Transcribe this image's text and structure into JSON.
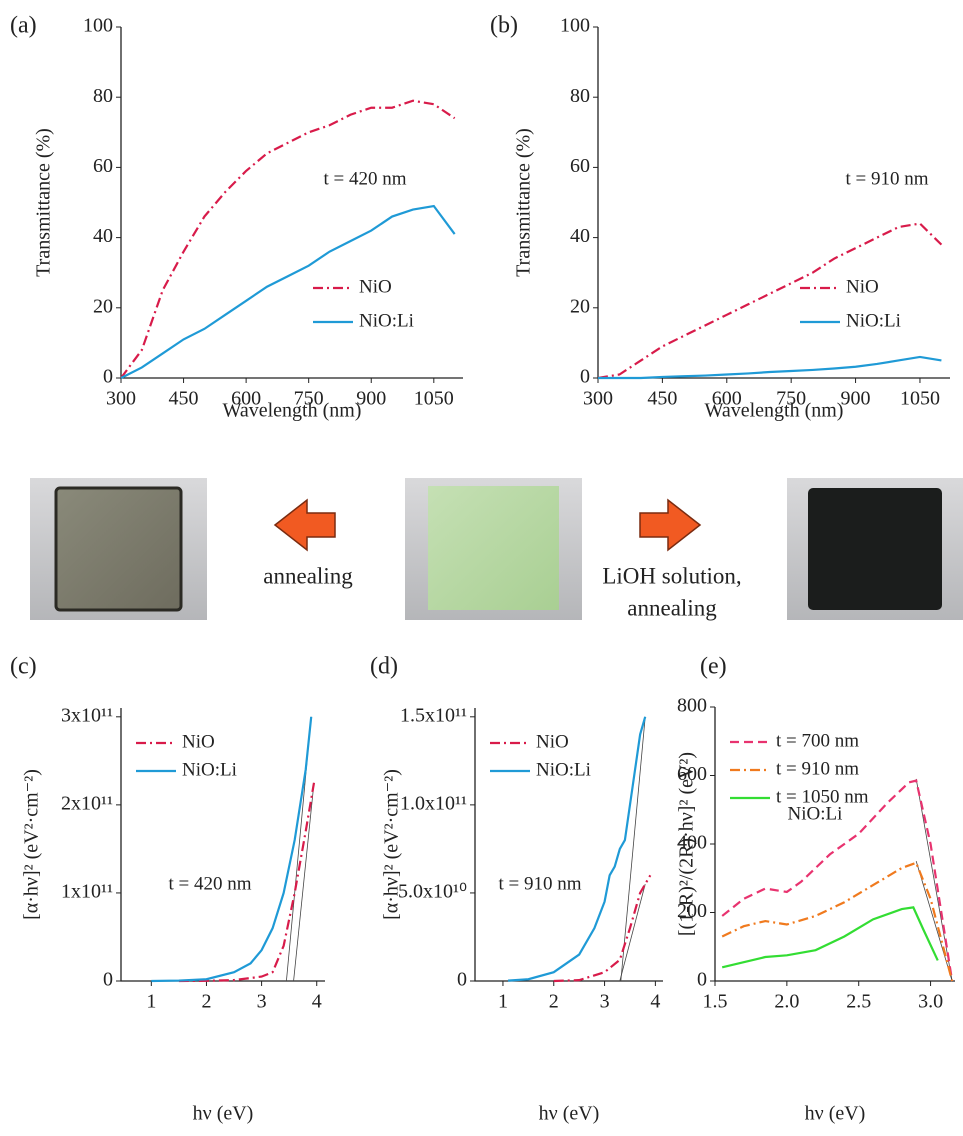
{
  "chart_data": [
    {
      "type": "line",
      "panel_label": "(a)",
      "xlabel": "Wavelength (nm)",
      "ylabel": "Transmittance (%)",
      "annotation": "t = 420 nm",
      "legend": "lower right",
      "xlim": [
        300,
        1120
      ],
      "ylim": [
        0,
        100
      ],
      "xticks": [
        300,
        450,
        600,
        750,
        900,
        1050
      ],
      "yticks": [
        0,
        20,
        40,
        60,
        80,
        100
      ],
      "series": [
        {
          "name": "NiO",
          "color": "#d81b4a",
          "dash": "dash-dot",
          "x": [
            300,
            350,
            400,
            450,
            500,
            550,
            600,
            650,
            700,
            750,
            800,
            850,
            900,
            950,
            1000,
            1050,
            1100
          ],
          "values": [
            0,
            8,
            25,
            36,
            46,
            53,
            59,
            64,
            67,
            70,
            72,
            75,
            77,
            77,
            79,
            78,
            74
          ]
        },
        {
          "name": "NiO:Li",
          "color": "#1f9ad6",
          "dash": "solid",
          "x": [
            300,
            350,
            400,
            450,
            500,
            550,
            600,
            650,
            700,
            750,
            800,
            850,
            900,
            950,
            1000,
            1050,
            1100
          ],
          "values": [
            0,
            3,
            7,
            11,
            14,
            18,
            22,
            26,
            29,
            32,
            36,
            39,
            42,
            46,
            48,
            49,
            41
          ]
        }
      ]
    },
    {
      "type": "line",
      "panel_label": "(b)",
      "xlabel": "Wavelength (nm)",
      "ylabel": "Transmittance (%)",
      "annotation": "t = 910 nm",
      "legend": "lower right",
      "xlim": [
        300,
        1120
      ],
      "ylim": [
        0,
        100
      ],
      "xticks": [
        300,
        450,
        600,
        750,
        900,
        1050
      ],
      "yticks": [
        0,
        20,
        40,
        60,
        80,
        100
      ],
      "series": [
        {
          "name": "NiO",
          "color": "#d81b4a",
          "dash": "dash-dot",
          "x": [
            300,
            350,
            400,
            450,
            500,
            550,
            600,
            650,
            700,
            750,
            800,
            850,
            900,
            950,
            1000,
            1050,
            1100
          ],
          "values": [
            0,
            1,
            5,
            9,
            12,
            15,
            18,
            21,
            24,
            27,
            30,
            34,
            37,
            40,
            43,
            44,
            38
          ]
        },
        {
          "name": "NiO:Li",
          "color": "#1f9ad6",
          "dash": "solid",
          "x": [
            300,
            350,
            400,
            450,
            500,
            550,
            600,
            650,
            700,
            750,
            800,
            850,
            900,
            950,
            1000,
            1050,
            1100
          ],
          "values": [
            0,
            0,
            0,
            0.3,
            0.5,
            0.7,
            1,
            1.3,
            1.7,
            2,
            2.3,
            2.7,
            3.2,
            4,
            5,
            6,
            5
          ]
        }
      ]
    },
    {
      "type": "line",
      "panel_label": "(c)",
      "xlabel": "hν (eV)",
      "ylabel": "[α·hν]² (eV²·cm⁻²)",
      "annotation": "t = 420 nm",
      "legend": "upper left",
      "xlim": [
        0.45,
        4.15
      ],
      "ylim": [
        0,
        310000000000
      ],
      "xticks": [
        1,
        2,
        3,
        4
      ],
      "yticks": [
        0,
        {
          "value": 100000000000,
          "label": "1x10¹¹"
        },
        {
          "value": 200000000000,
          "label": "2x10¹¹"
        },
        {
          "value": 300000000000,
          "label": "3x10¹¹"
        }
      ],
      "series": [
        {
          "name": "NiO",
          "color": "#d81b4a",
          "dash": "dash-dot",
          "x": [
            1.5,
            2.0,
            2.5,
            3.0,
            3.2,
            3.4,
            3.6,
            3.8,
            3.95
          ],
          "values": [
            0,
            200000000,
            1000000000,
            5000000000,
            10000000000,
            40000000000,
            100000000000,
            170000000000,
            225000000000
          ]
        },
        {
          "name": "NiO:Li",
          "color": "#1f9ad6",
          "dash": "solid",
          "x": [
            1.0,
            1.5,
            2.0,
            2.5,
            2.8,
            3.0,
            3.2,
            3.4,
            3.6,
            3.8,
            3.9
          ],
          "values": [
            0,
            500000000,
            2000000000,
            10000000000,
            20000000000,
            35000000000,
            60000000000,
            100000000000,
            160000000000,
            240000000000,
            300000000000
          ]
        }
      ],
      "fit_lines": [
        {
          "x": [
            3.45,
            3.9
          ],
          "values": [
            0,
            300000000000
          ]
        },
        {
          "x": [
            3.58,
            3.95
          ],
          "values": [
            0,
            225000000000
          ]
        }
      ]
    },
    {
      "type": "line",
      "panel_label": "(d)",
      "xlabel": "hν (eV)",
      "ylabel": "[α·hν]² (eV²·cm⁻²)",
      "annotation": "t = 910 nm",
      "legend": "upper left",
      "xlim": [
        0.45,
        4.15
      ],
      "ylim": [
        0,
        155000000000
      ],
      "xticks": [
        1,
        2,
        3,
        4
      ],
      "yticks": [
        0,
        {
          "value": 50000000000,
          "label": "5.0x10¹⁰"
        },
        {
          "value": 100000000000,
          "label": "1.0x10¹¹"
        },
        {
          "value": 150000000000,
          "label": "1.5x10¹¹"
        }
      ],
      "series": [
        {
          "name": "NiO",
          "color": "#d81b4a",
          "dash": "dash-dot",
          "x": [
            2.0,
            2.5,
            3.0,
            3.3,
            3.5,
            3.7,
            3.9
          ],
          "values": [
            0,
            500000000,
            5000000000,
            12000000000,
            30000000000,
            50000000000,
            60000000000
          ]
        },
        {
          "name": "NiO:Li",
          "color": "#1f9ad6",
          "dash": "solid",
          "x": [
            1.1,
            1.5,
            2.0,
            2.5,
            2.8,
            3.0,
            3.1,
            3.2,
            3.3,
            3.4,
            3.5,
            3.6,
            3.7,
            3.8
          ],
          "values": [
            200000000,
            1000000000,
            5000000000,
            15000000000,
            30000000000,
            45000000000,
            60000000000,
            65000000000,
            75000000000,
            80000000000,
            100000000000,
            120000000000,
            140000000000,
            150000000000
          ]
        }
      ],
      "fit_lines": [
        {
          "x": [
            3.32,
            3.8
          ],
          "values": [
            0,
            150000000000
          ]
        },
        {
          "x": [
            3.3,
            3.8
          ],
          "values": [
            0,
            55000000000
          ]
        }
      ]
    },
    {
      "type": "line",
      "panel_label": "(e)",
      "xlabel": "hν (eV)",
      "ylabel": "[(1-R)²/(2R)·hν]² (eV²)",
      "annotation": "NiO:Li",
      "legend": "upper left",
      "xlim": [
        1.5,
        3.17
      ],
      "ylim": [
        0,
        800
      ],
      "xticks": [
        1.5,
        {
          "value": 2,
          "label": "2.0"
        },
        2.5,
        {
          "value": 3,
          "label": "3.0"
        }
      ],
      "yticks": [
        0,
        200,
        400,
        600,
        800
      ],
      "series": [
        {
          "name": "t = 700 nm",
          "color": "#e8336f",
          "dash": "dashed",
          "x": [
            1.55,
            1.7,
            1.85,
            2.0,
            2.1,
            2.3,
            2.5,
            2.7,
            2.85,
            2.9,
            3.0,
            3.15
          ],
          "values": [
            190,
            240,
            270,
            260,
            290,
            370,
            430,
            520,
            580,
            585,
            400,
            0
          ]
        },
        {
          "name": "t = 910 nm",
          "color": "#f07a1e",
          "dash": "dash-dot",
          "x": [
            1.55,
            1.7,
            1.85,
            2.0,
            2.2,
            2.4,
            2.6,
            2.8,
            2.9,
            3.0,
            3.15
          ],
          "values": [
            130,
            160,
            175,
            165,
            190,
            230,
            280,
            330,
            345,
            240,
            0
          ]
        },
        {
          "name": "t = 1050 nm",
          "color": "#33dd33",
          "dash": "solid",
          "x": [
            1.55,
            1.7,
            1.85,
            2.0,
            2.2,
            2.4,
            2.6,
            2.8,
            2.88,
            2.95,
            3.05
          ],
          "values": [
            40,
            55,
            70,
            75,
            90,
            130,
            180,
            210,
            215,
            150,
            60
          ]
        }
      ],
      "fit_lines": [
        {
          "x": [
            2.9,
            3.15
          ],
          "values": [
            590,
            0
          ]
        },
        {
          "x": [
            2.9,
            3.15
          ],
          "values": [
            350,
            0
          ]
        }
      ]
    }
  ],
  "photos": {
    "left_label": "annealing",
    "right_label_lines": [
      "LiOH solution,",
      "annealing"
    ]
  }
}
